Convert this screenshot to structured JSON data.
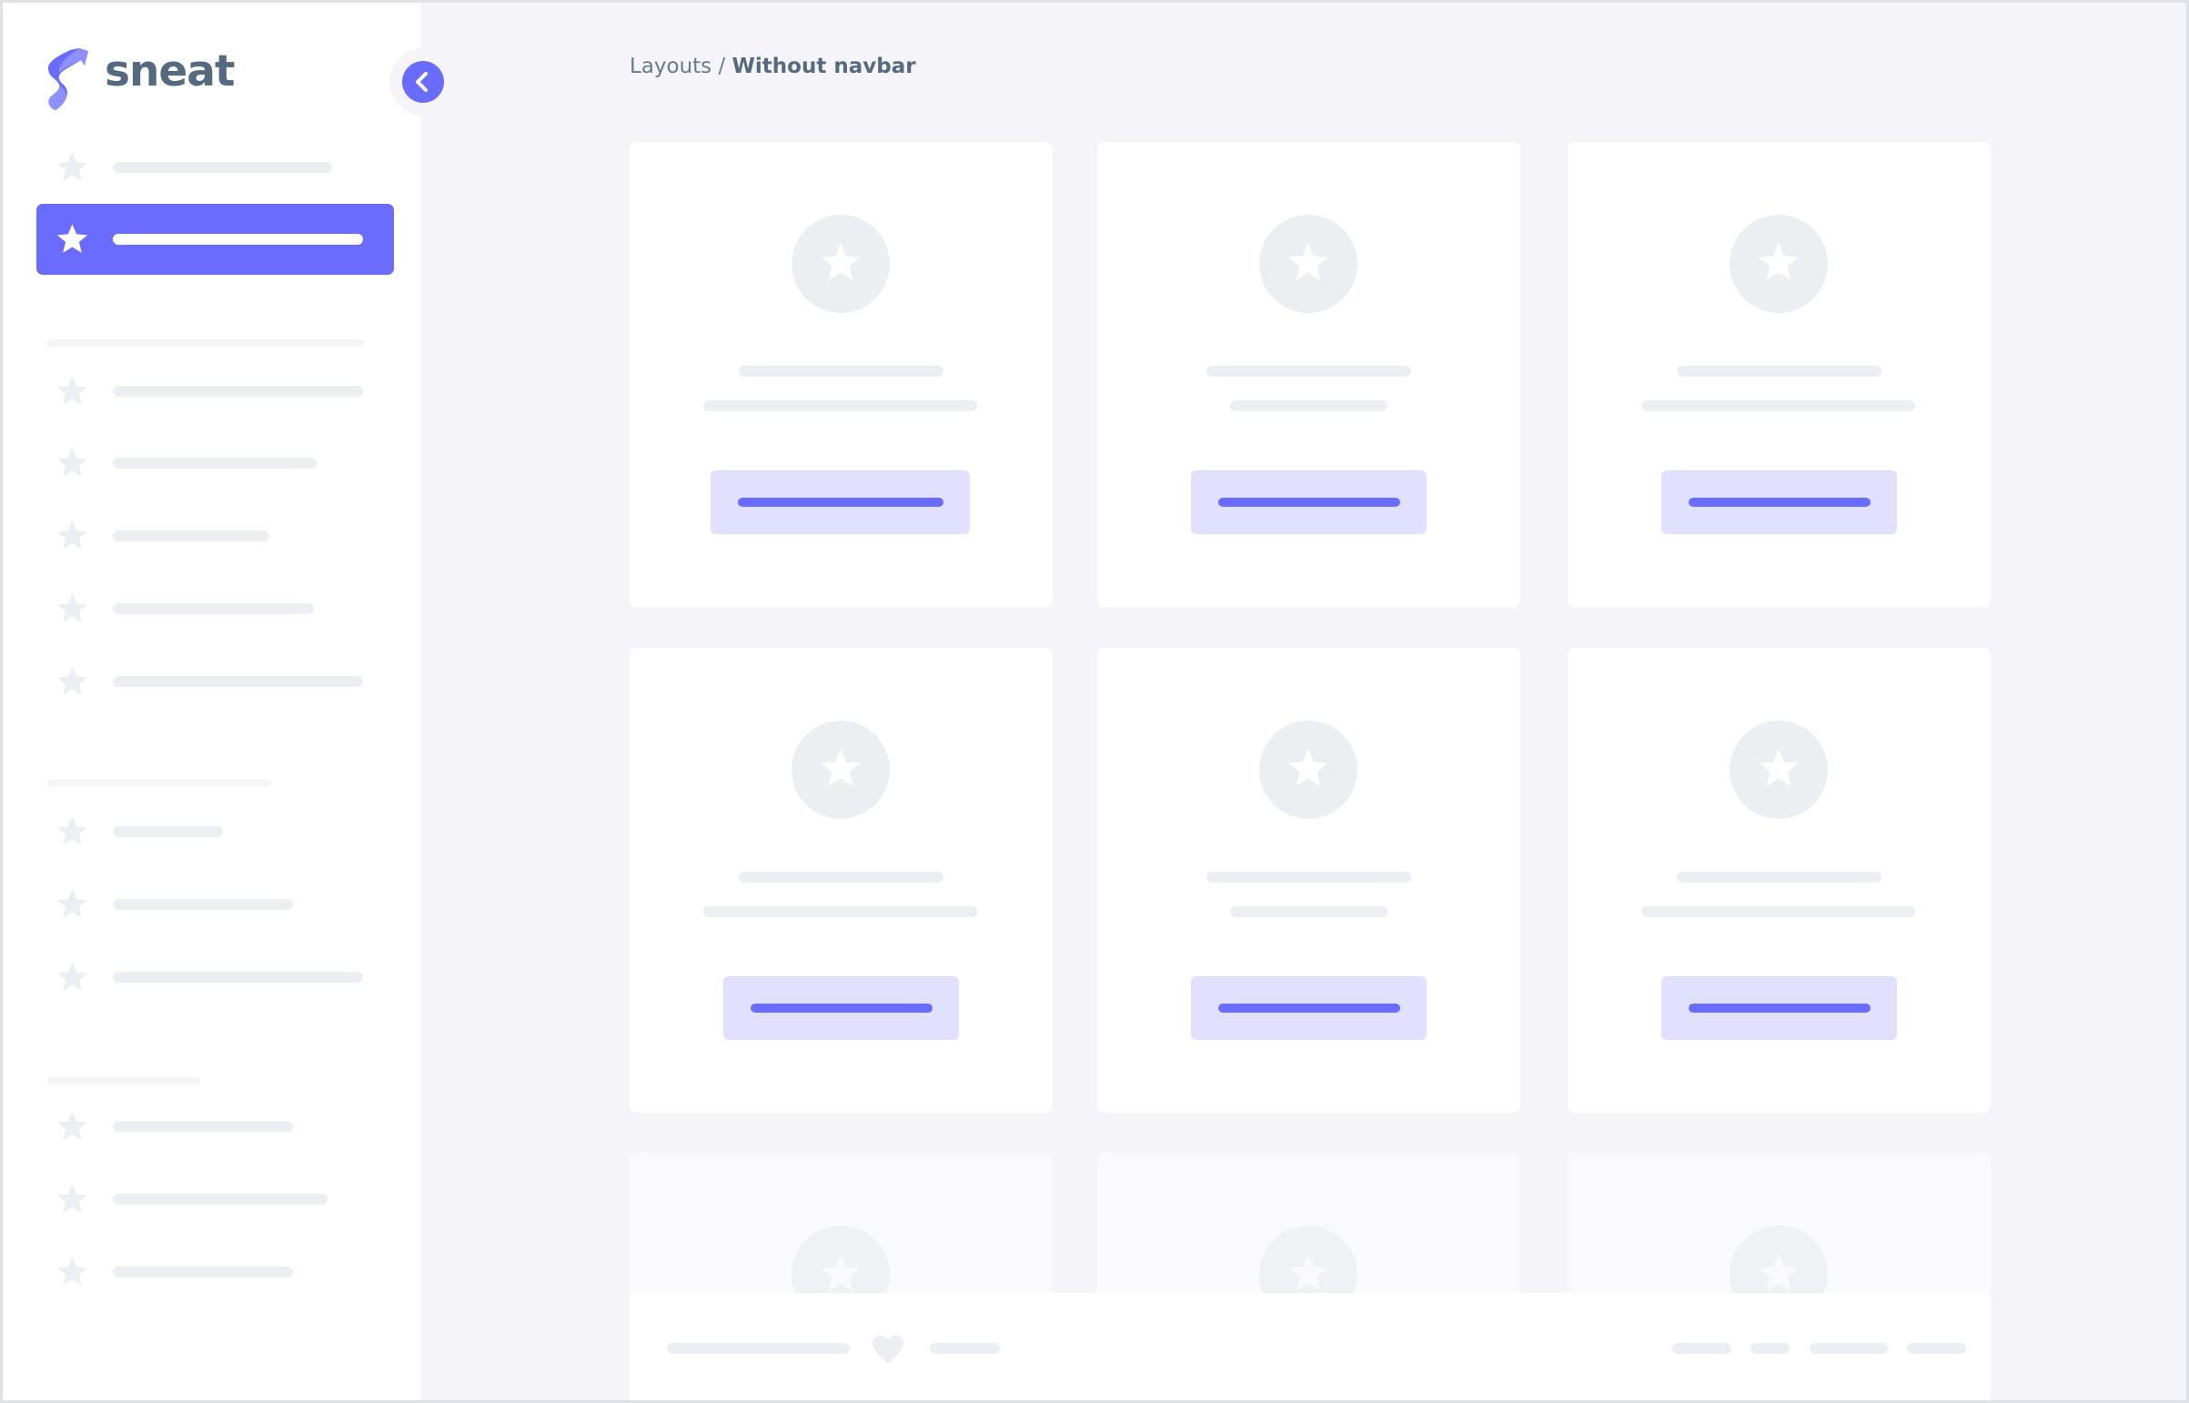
{
  "app": {
    "logo_text": "sneat"
  },
  "breadcrumb": {
    "parent": "Layouts",
    "separator": " / ",
    "current": "Without navbar"
  },
  "colors": {
    "accent": "#696cff",
    "accent_light": "#e1e0fe",
    "skeleton": "#eceef1",
    "background": "#f5f5f9",
    "text": "#566a7f"
  },
  "icons": {
    "menu_item": "star-icon",
    "toggle": "chevron-left-icon",
    "footer": "heart-icon",
    "logo": "sneat-logo-icon"
  }
}
